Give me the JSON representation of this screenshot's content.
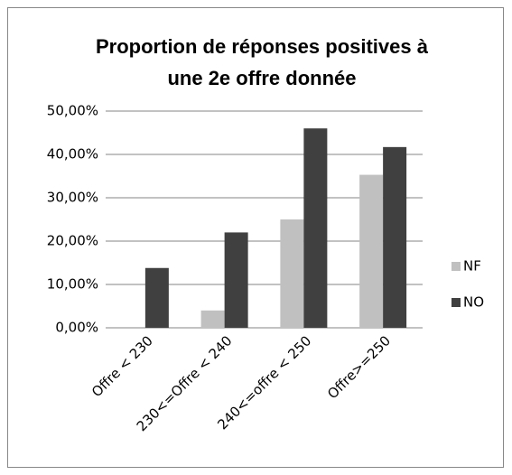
{
  "chart_data": {
    "type": "bar",
    "title": [
      "Proportion de réponses positives à",
      "une 2e offre donnée"
    ],
    "categories": [
      "Offre < 230",
      "230<=Offre < 240",
      "240<=offre < 250",
      "Offre>=250"
    ],
    "series": [
      {
        "name": "NF",
        "color": "#c0c0c0",
        "values": [
          0,
          4,
          25,
          35.3
        ]
      },
      {
        "name": "NO",
        "color": "#404040",
        "values": [
          13.8,
          22,
          46,
          41.7
        ]
      }
    ],
    "ylim": [
      0,
      50
    ],
    "yticks": [
      {
        "value": 0,
        "label": "0,00%"
      },
      {
        "value": 10,
        "label": "10,00%"
      },
      {
        "value": 20,
        "label": "20,00%"
      },
      {
        "value": 30,
        "label": "30,00%"
      },
      {
        "value": 40,
        "label": "40,00%"
      },
      {
        "value": 50,
        "label": "50,00%"
      }
    ],
    "grid": true,
    "legend": "right"
  }
}
